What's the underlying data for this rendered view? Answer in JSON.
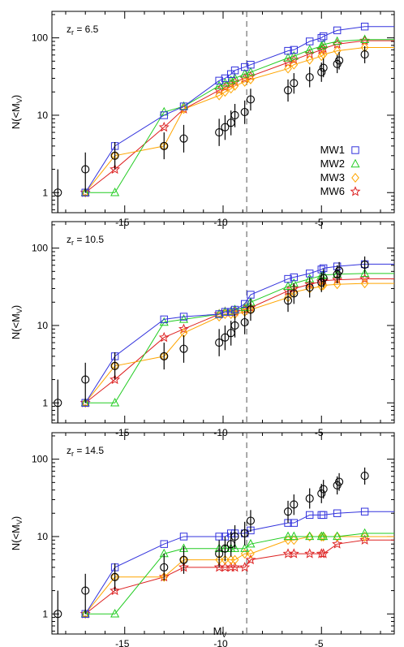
{
  "chart_data": {
    "type": "line",
    "xlabel": "M",
    "xlabel_sub": "V",
    "ylabel": "N(<M",
    "ylabel_sub": "V",
    "ylabel_close": ")",
    "xlim": [
      -18.7,
      -1.3
    ],
    "ylim_log": [
      0.55,
      220
    ],
    "xticks": [
      -15,
      -10,
      -5
    ],
    "yticks": [
      1,
      10,
      100
    ],
    "reference_line_x": -8.8,
    "legend_position": "right-middle of top panel",
    "colors": {
      "MW1": "#3333dd",
      "MW2": "#22cc22",
      "MW3": "#ffa500",
      "MW6": "#dd2222",
      "observed": "#000000"
    },
    "legend": [
      {
        "name": "MW1",
        "marker": "square",
        "color": "#3333dd"
      },
      {
        "name": "MW2",
        "marker": "triangle",
        "color": "#22cc22"
      },
      {
        "name": "MW3",
        "marker": "diamond",
        "color": "#ffa500"
      },
      {
        "name": "MW6",
        "marker": "star",
        "color": "#dd2222"
      }
    ],
    "observed": [
      {
        "x": -18.4,
        "y": 1,
        "lo": 0.55,
        "hi": 2
      },
      {
        "x": -17.0,
        "y": 2,
        "lo": 1,
        "hi": 3.3
      },
      {
        "x": -15.5,
        "y": 3,
        "lo": 2,
        "hi": 4.5
      },
      {
        "x": -13.0,
        "y": 4,
        "lo": 2.7,
        "hi": 6
      },
      {
        "x": -12.0,
        "y": 5,
        "lo": 3.3,
        "hi": 7.5
      },
      {
        "x": -10.2,
        "y": 6,
        "lo": 4,
        "hi": 9
      },
      {
        "x": -9.9,
        "y": 7,
        "lo": 4.8,
        "hi": 10
      },
      {
        "x": -9.6,
        "y": 8,
        "lo": 5.5,
        "hi": 11.5
      },
      {
        "x": -9.4,
        "y": 10,
        "lo": 7,
        "hi": 14
      },
      {
        "x": -8.9,
        "y": 11,
        "lo": 7.7,
        "hi": 15.5
      },
      {
        "x": -8.6,
        "y": 16,
        "lo": 11.5,
        "hi": 22
      },
      {
        "x": -6.7,
        "y": 21,
        "lo": 15,
        "hi": 29
      },
      {
        "x": -6.4,
        "y": 26,
        "lo": 19,
        "hi": 35
      },
      {
        "x": -5.6,
        "y": 31,
        "lo": 23,
        "hi": 42
      },
      {
        "x": -5.0,
        "y": 36,
        "lo": 27,
        "hi": 48
      },
      {
        "x": -4.9,
        "y": 41,
        "lo": 31,
        "hi": 54
      },
      {
        "x": -4.2,
        "y": 46,
        "lo": 35,
        "hi": 60
      },
      {
        "x": -4.1,
        "y": 51,
        "lo": 39,
        "hi": 66
      },
      {
        "x": -2.8,
        "y": 61,
        "lo": 47,
        "hi": 78
      }
    ],
    "panels": [
      {
        "label": "z",
        "label_sub": "r",
        "label_value": " = 6.5",
        "series": [
          {
            "name": "MW1",
            "x": [
              -17.0,
              -15.5,
              -13.0,
              -12.0,
              -10.2,
              -9.9,
              -9.6,
              -9.4,
              -8.9,
              -8.6,
              -6.7,
              -6.4,
              -5.6,
              -5.0,
              -4.9,
              -4.2,
              -2.8,
              -1.3
            ],
            "values": [
              1,
              4,
              10,
              13,
              28,
              30,
              34,
              38,
              42,
              45,
              68,
              70,
              90,
              100,
              105,
              125,
              140,
              140
            ]
          },
          {
            "name": "MW2",
            "x": [
              -17.0,
              -15.5,
              -13.0,
              -12.0,
              -10.2,
              -9.9,
              -9.6,
              -9.4,
              -8.9,
              -8.6,
              -6.7,
              -6.4,
              -5.6,
              -5.0,
              -4.9,
              -4.2,
              -2.8,
              -1.3
            ],
            "values": [
              1,
              1,
              11,
              13,
              24,
              26,
              28,
              30,
              34,
              36,
              55,
              58,
              70,
              78,
              82,
              90,
              95,
              95
            ]
          },
          {
            "name": "MW3",
            "x": [
              -17.0,
              -15.5,
              -13.0,
              -12.0,
              -10.2,
              -9.9,
              -9.6,
              -9.4,
              -8.9,
              -8.6,
              -6.7,
              -6.4,
              -5.6,
              -5.0,
              -4.9,
              -4.2,
              -2.8,
              -1.3
            ],
            "values": [
              1,
              3,
              4,
              12,
              18,
              20,
              22,
              24,
              27,
              29,
              40,
              45,
              52,
              58,
              61,
              68,
              75,
              75
            ]
          },
          {
            "name": "MW6",
            "x": [
              -17.0,
              -15.5,
              -13.0,
              -12.0,
              -10.2,
              -9.9,
              -9.6,
              -9.4,
              -8.9,
              -8.6,
              -6.7,
              -6.4,
              -5.6,
              -5.0,
              -4.9,
              -4.2,
              -2.8,
              -1.3
            ],
            "values": [
              1,
              2,
              7,
              12,
              21,
              23,
              25,
              27,
              30,
              32,
              48,
              52,
              62,
              70,
              73,
              83,
              92,
              92
            ]
          }
        ]
      },
      {
        "label": "z",
        "label_sub": "r",
        "label_value": " = 10.5",
        "series": [
          {
            "name": "MW1",
            "x": [
              -17.0,
              -15.5,
              -13.0,
              -12.0,
              -10.2,
              -9.9,
              -9.6,
              -9.4,
              -8.9,
              -8.6,
              -6.7,
              -6.4,
              -5.6,
              -5.0,
              -4.9,
              -4.2,
              -2.8,
              -1.3
            ],
            "values": [
              1,
              4,
              12,
              13,
              14,
              15,
              15,
              16,
              19,
              25,
              40,
              42,
              47,
              53,
              55,
              58,
              62,
              62
            ]
          },
          {
            "name": "MW2",
            "x": [
              -17.0,
              -15.5,
              -13.0,
              -12.0,
              -10.2,
              -9.9,
              -9.6,
              -9.4,
              -8.9,
              -8.6,
              -6.7,
              -6.4,
              -5.6,
              -5.0,
              -4.9,
              -4.2,
              -2.8,
              -1.3
            ],
            "values": [
              1,
              1,
              11,
              12,
              14,
              15,
              15,
              16,
              17,
              20,
              32,
              35,
              40,
              44,
              45,
              46,
              47,
              47
            ]
          },
          {
            "name": "MW3",
            "x": [
              -17.0,
              -15.5,
              -13.0,
              -12.0,
              -10.2,
              -9.9,
              -9.6,
              -9.4,
              -8.9,
              -8.6,
              -6.7,
              -6.4,
              -5.6,
              -5.0,
              -4.9,
              -4.2,
              -2.8,
              -1.3
            ],
            "values": [
              1,
              3,
              4,
              8,
              13,
              14,
              14,
              14,
              15,
              16,
              23,
              27,
              30,
              32,
              33,
              34,
              35,
              35
            ]
          },
          {
            "name": "MW6",
            "x": [
              -17.0,
              -15.5,
              -13.0,
              -12.0,
              -10.2,
              -9.9,
              -9.6,
              -9.4,
              -8.9,
              -8.6,
              -6.7,
              -6.4,
              -5.6,
              -5.0,
              -4.9,
              -4.2,
              -2.8,
              -1.3
            ],
            "values": [
              1,
              2,
              7,
              9,
              14,
              15,
              15,
              15,
              16,
              17,
              28,
              30,
              34,
              37,
              38,
              39,
              40,
              40
            ]
          }
        ]
      },
      {
        "label": "z",
        "label_sub": "r",
        "label_value": " = 14.5",
        "series": [
          {
            "name": "MW1",
            "x": [
              -17.0,
              -15.5,
              -13.0,
              -12.0,
              -10.2,
              -9.9,
              -9.6,
              -9.4,
              -8.9,
              -8.6,
              -6.7,
              -6.4,
              -5.6,
              -5.0,
              -4.9,
              -4.2,
              -2.8,
              -1.3
            ],
            "values": [
              1,
              4,
              8,
              10,
              10,
              10,
              11,
              11,
              11,
              12,
              15,
              15,
              19,
              19,
              19,
              20,
              21,
              21
            ]
          },
          {
            "name": "MW2",
            "x": [
              -17.0,
              -15.5,
              -13.0,
              -12.0,
              -10.2,
              -9.9,
              -9.6,
              -9.4,
              -8.9,
              -8.6,
              -6.7,
              -6.4,
              -5.6,
              -5.0,
              -4.9,
              -4.2,
              -2.8,
              -1.3
            ],
            "values": [
              1,
              1,
              6,
              7,
              7,
              7,
              7,
              7,
              7,
              8,
              10,
              10,
              10,
              10,
              10,
              10,
              11,
              11
            ]
          },
          {
            "name": "MW3",
            "x": [
              -17.0,
              -15.5,
              -13.0,
              -12.0,
              -10.2,
              -9.9,
              -9.6,
              -9.4,
              -8.9,
              -8.6,
              -6.7,
              -6.4,
              -5.6,
              -5.0,
              -4.9,
              -4.2,
              -2.8,
              -1.3
            ],
            "values": [
              1,
              3,
              3,
              5,
              5,
              5,
              5,
              5,
              6,
              6,
              9,
              9,
              10,
              10,
              10,
              10,
              10,
              10
            ]
          },
          {
            "name": "MW6",
            "x": [
              -17.0,
              -15.5,
              -13.0,
              -12.0,
              -10.2,
              -9.9,
              -9.6,
              -9.4,
              -8.9,
              -8.6,
              -6.7,
              -6.4,
              -5.6,
              -5.0,
              -4.9,
              -4.2,
              -2.8,
              -1.3
            ],
            "values": [
              1,
              2,
              3,
              4,
              4,
              4,
              4,
              4,
              4,
              5,
              6,
              6,
              6,
              6,
              6,
              8,
              9,
              9
            ]
          }
        ]
      }
    ]
  }
}
